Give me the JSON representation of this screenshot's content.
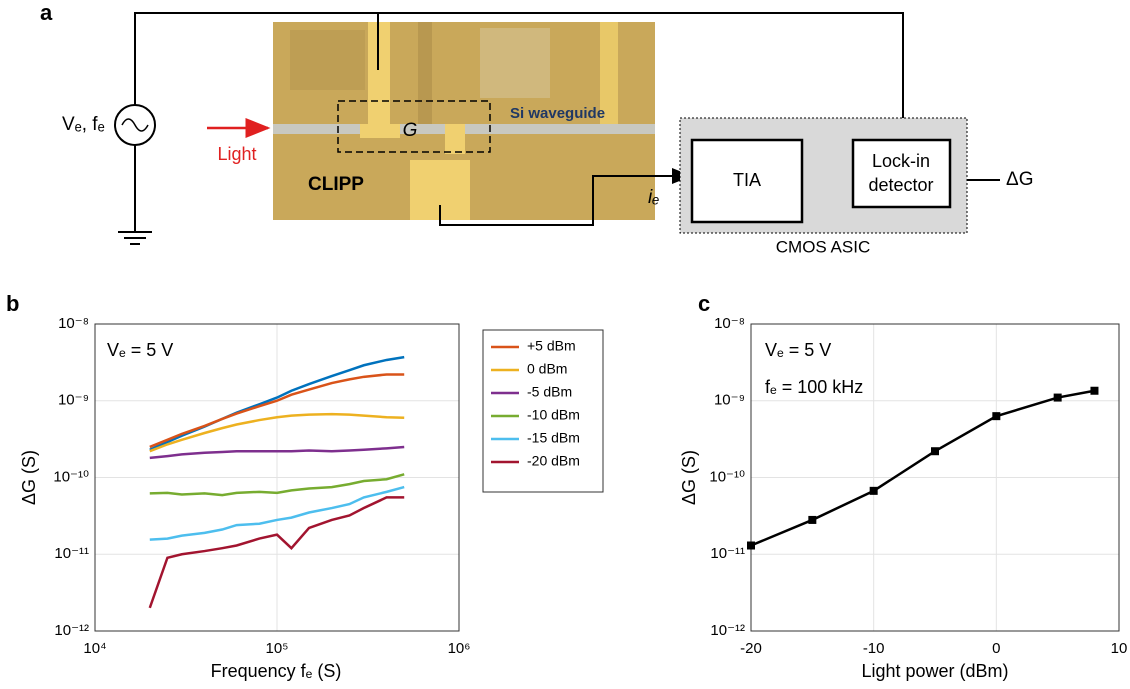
{
  "panels": [
    "a",
    "b",
    "c"
  ],
  "diagram": {
    "source_label": "Vₑ, fₑ",
    "light": "Light",
    "clipp": "CLIPP",
    "gap": "G",
    "waveguide": "Si waveguide",
    "tia": "TIA",
    "lockin": [
      "Lock-in",
      "detector"
    ],
    "output": "ΔG",
    "current": "iₑ",
    "asic": "CMOS ASIC"
  },
  "chart_data": [
    {
      "type": "line",
      "xlabel": "Frequency fₑ (S)",
      "ylabel": "ΔG (S)",
      "annotations": [
        "Vₑ = 5 V"
      ],
      "xlog": true,
      "ylog": true,
      "grid": true,
      "legend": "outside right",
      "xlim": [
        10000,
        1000000
      ],
      "ylim": [
        1e-12,
        1e-08
      ],
      "xticks": [
        {
          "value": 10000,
          "label": "10⁴"
        },
        {
          "value": 100000,
          "label": "10⁵"
        },
        {
          "value": 1000000,
          "label": "10⁶"
        }
      ],
      "yticks": [
        {
          "value": 1e-12,
          "label": "10⁻¹²"
        },
        {
          "value": 1e-11,
          "label": "10⁻¹¹"
        },
        {
          "value": 1e-10,
          "label": "10⁻¹⁰"
        },
        {
          "value": 1e-09,
          "label": "10⁻⁹"
        },
        {
          "value": 1e-08,
          "label": "10⁻⁸"
        }
      ],
      "x": [
        20000,
        25000,
        30000,
        40000,
        50000,
        60000,
        80000,
        100000,
        120000,
        150000,
        200000,
        250000,
        300000,
        400000,
        500000
      ],
      "series": [
        {
          "color": "#0072bd",
          "values": [
            2.3e-10,
            2.9e-10,
            3.5e-10,
            4.6e-10,
            5.8e-10,
            7e-10,
            9e-10,
            1.1e-09,
            1.35e-09,
            1.65e-09,
            2.1e-09,
            2.5e-09,
            2.9e-09,
            3.4e-09,
            3.7e-09
          ]
        },
        {
          "name": "+5 dBm",
          "color": "#d95319",
          "values": [
            2.5e-10,
            3.1e-10,
            3.7e-10,
            4.7e-10,
            5.8e-10,
            6.8e-10,
            8.5e-10,
            1e-09,
            1.2e-09,
            1.4e-09,
            1.7e-09,
            1.9e-09,
            2.05e-09,
            2.2e-09,
            2.2e-09
          ]
        },
        {
          "name": "0 dBm",
          "color": "#edb120",
          "values": [
            2.2e-10,
            2.7e-10,
            3.1e-10,
            3.8e-10,
            4.4e-10,
            4.9e-10,
            5.6e-10,
            6.1e-10,
            6.4e-10,
            6.6e-10,
            6.7e-10,
            6.6e-10,
            6.4e-10,
            6.1e-10,
            6e-10
          ]
        },
        {
          "name": "-5 dBm",
          "color": "#7e2f8e",
          "values": [
            1.8e-10,
            1.9e-10,
            2e-10,
            2.1e-10,
            2.15e-10,
            2.2e-10,
            2.2e-10,
            2.2e-10,
            2.2e-10,
            2.25e-10,
            2.2e-10,
            2.25e-10,
            2.3e-10,
            2.4e-10,
            2.5e-10
          ]
        },
        {
          "name": "-10 dBm",
          "color": "#77ac30",
          "values": [
            6.2e-11,
            6.3e-11,
            6e-11,
            6.2e-11,
            5.9e-11,
            6.3e-11,
            6.5e-11,
            6.3e-11,
            6.8e-11,
            7.2e-11,
            7.5e-11,
            8.2e-11,
            9e-11,
            9.5e-11,
            1.1e-10
          ]
        },
        {
          "name": "-15 dBm",
          "color": "#4dbeee",
          "values": [
            1.55e-11,
            1.6e-11,
            1.75e-11,
            1.9e-11,
            2.1e-11,
            2.4e-11,
            2.5e-11,
            2.8e-11,
            3e-11,
            3.5e-11,
            4e-11,
            4.5e-11,
            5.5e-11,
            6.5e-11,
            7.5e-11
          ]
        },
        {
          "name": "-20 dBm",
          "color": "#a2142f",
          "values": [
            2e-12,
            9e-12,
            1e-11,
            1.1e-11,
            1.2e-11,
            1.3e-11,
            1.6e-11,
            1.8e-11,
            1.2e-11,
            2.2e-11,
            2.8e-11,
            3.2e-11,
            4e-11,
            5.5e-11,
            5.5e-11
          ]
        }
      ]
    },
    {
      "type": "line",
      "xlabel": "Light power (dBm)",
      "ylabel": "ΔG (S)",
      "annotations": [
        "Vₑ = 5 V",
        "fₑ = 100 kHz"
      ],
      "xlog": false,
      "ylog": true,
      "grid": true,
      "marker": "square",
      "xlim": [
        -20,
        10
      ],
      "ylim": [
        1e-12,
        1e-08
      ],
      "xticks": [
        -20,
        -10,
        0,
        10
      ],
      "yticks": [
        {
          "value": 1e-12,
          "label": "10⁻¹²"
        },
        {
          "value": 1e-11,
          "label": "10⁻¹¹"
        },
        {
          "value": 1e-10,
          "label": "10⁻¹⁰"
        },
        {
          "value": 1e-09,
          "label": "10⁻⁹"
        },
        {
          "value": 1e-08,
          "label": "10⁻⁸"
        }
      ],
      "x": [
        -20,
        -15,
        -10,
        -5,
        0,
        5,
        8
      ],
      "series": [
        {
          "color": "#000000",
          "values": [
            1.3e-11,
            2.8e-11,
            6.7e-11,
            2.2e-10,
            6.3e-10,
            1.1e-09,
            1.35e-09
          ]
        }
      ]
    }
  ]
}
